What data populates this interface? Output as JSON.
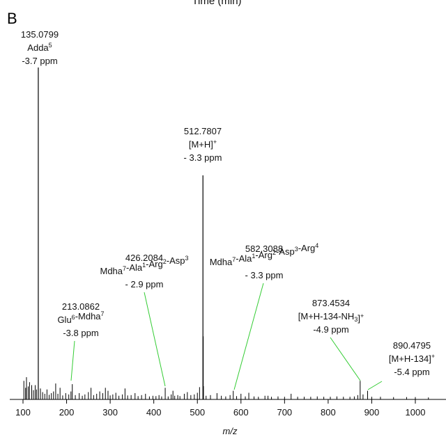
{
  "header_fragment": "Time (min)",
  "panel_label": "B",
  "chart_data": {
    "type": "bar",
    "subtype": "mass-spectrum-stick",
    "xlabel": "m/z",
    "xlim": [
      75,
      1075
    ],
    "xticks": [
      100,
      200,
      300,
      400,
      500,
      600,
      700,
      800,
      900,
      1000
    ],
    "colors": {
      "peaks": "#000000",
      "leader_lines": "#33cc33",
      "axis": "#000000"
    },
    "annotations": [
      {
        "mz": "135.0799",
        "line2": "Adda",
        "line2_sup": "5",
        "line3": "-3.7 ppm"
      },
      {
        "mz": "512.7807",
        "line2": "[M+H]",
        "line2_sup": "+",
        "line3": "- 3.3 ppm"
      },
      {
        "mz": "426.2084",
        "line2_parts": [
          [
            "Mdha",
            "7"
          ],
          [
            "-Ala",
            "1"
          ],
          [
            "-Arg",
            "2"
          ],
          [
            "-Asp",
            "3"
          ]
        ],
        "line3": "- 2.9 ppm"
      },
      {
        "mz": "582.3088",
        "line2_parts": [
          [
            "Mdha",
            "7"
          ],
          [
            "-Ala",
            "1"
          ],
          [
            "-Arg",
            "2"
          ],
          [
            "-Asp",
            "3"
          ],
          [
            "-Arg",
            "4"
          ]
        ],
        "line3": "- 3.3 ppm"
      },
      {
        "mz": "213.0862",
        "line2_parts": [
          [
            "Glu",
            "6"
          ],
          [
            "-Mdha",
            "7"
          ]
        ],
        "line3": "-3.8 ppm"
      },
      {
        "mz": "873.4534",
        "line2_parts": [
          [
            "[M+H-134-NH",
            ""
          ],
          [
            "",
            "3"
          ],
          [
            "]",
            "+"
          ]
        ],
        "line3": "-4.9 ppm"
      },
      {
        "mz": "890.4795",
        "line2": "[M+H-134]",
        "line2_sup": "+",
        "line3": "-5.4 ppm"
      }
    ],
    "peaks": [
      [
        135.08,
        100
      ],
      [
        512.78,
        67.5
      ],
      [
        513.3,
        19
      ],
      [
        514.0,
        4
      ],
      [
        873.45,
        5.6
      ],
      [
        890.48,
        2.6
      ],
      [
        426.21,
        3.5
      ],
      [
        213.09,
        4.6
      ],
      [
        582.31,
        2.6
      ],
      [
        102,
        5.6
      ],
      [
        106,
        3.5
      ],
      [
        108,
        6.7
      ],
      [
        112,
        3.9
      ],
      [
        115,
        5.2
      ],
      [
        120,
        4.3
      ],
      [
        124,
        2.8
      ],
      [
        128,
        4.3
      ],
      [
        131,
        3.0
      ],
      [
        140,
        3.3
      ],
      [
        145,
        2.2
      ],
      [
        150,
        1.7
      ],
      [
        155,
        3.0
      ],
      [
        160,
        1.4
      ],
      [
        165,
        1.9
      ],
      [
        170,
        2.4
      ],
      [
        175,
        4.8
      ],
      [
        180,
        1.7
      ],
      [
        185,
        3.5
      ],
      [
        191,
        1.2
      ],
      [
        198,
        1.9
      ],
      [
        205,
        1.5
      ],
      [
        210,
        2.4
      ],
      [
        220,
        1.3
      ],
      [
        229,
        1.9
      ],
      [
        236,
        1.1
      ],
      [
        242,
        1.5
      ],
      [
        250,
        2.2
      ],
      [
        256,
        3.5
      ],
      [
        262,
        1.3
      ],
      [
        269,
        1.7
      ],
      [
        276,
        2.4
      ],
      [
        283,
        1.9
      ],
      [
        289,
        3.5
      ],
      [
        295,
        2.6
      ],
      [
        300,
        1.2
      ],
      [
        306,
        1.5
      ],
      [
        313,
        2.0
      ],
      [
        320,
        1.1
      ],
      [
        328,
        1.5
      ],
      [
        334,
        3.3
      ],
      [
        340,
        1.2
      ],
      [
        348,
        1.3
      ],
      [
        357,
        1.9
      ],
      [
        364,
        1.0
      ],
      [
        372,
        1.3
      ],
      [
        381,
        1.7
      ],
      [
        390,
        0.9
      ],
      [
        398,
        1.1
      ],
      [
        405,
        1.0
      ],
      [
        412,
        1.3
      ],
      [
        418,
        0.9
      ],
      [
        433,
        0.9
      ],
      [
        440,
        1.5
      ],
      [
        444,
        2.6
      ],
      [
        448,
        1.1
      ],
      [
        455,
        1.3
      ],
      [
        460,
        1.0
      ],
      [
        470,
        1.7
      ],
      [
        477,
        2.2
      ],
      [
        485,
        1.3
      ],
      [
        493,
        1.5
      ],
      [
        500,
        2.0
      ],
      [
        505,
        3.7
      ],
      [
        520,
        1.1
      ],
      [
        530,
        1.3
      ],
      [
        545,
        1.9
      ],
      [
        555,
        1.1
      ],
      [
        565,
        0.9
      ],
      [
        575,
        1.3
      ],
      [
        590,
        1.0
      ],
      [
        600,
        1.7
      ],
      [
        610,
        0.9
      ],
      [
        618,
        2.0
      ],
      [
        630,
        0.9
      ],
      [
        640,
        0.8
      ],
      [
        655,
        1.1
      ],
      [
        662,
        1.1
      ],
      [
        670,
        0.8
      ],
      [
        685,
        0.9
      ],
      [
        700,
        0.8
      ],
      [
        715,
        1.7
      ],
      [
        730,
        0.8
      ],
      [
        745,
        0.8
      ],
      [
        760,
        0.8
      ],
      [
        775,
        0.9
      ],
      [
        790,
        0.8
      ],
      [
        805,
        0.8
      ],
      [
        820,
        0.9
      ],
      [
        835,
        0.8
      ],
      [
        850,
        0.8
      ],
      [
        860,
        0.9
      ],
      [
        868,
        1.3
      ],
      [
        880,
        1.5
      ],
      [
        900,
        0.8
      ],
      [
        920,
        0.8
      ],
      [
        950,
        0.7
      ],
      [
        980,
        0.7
      ],
      [
        1000,
        0.7
      ],
      [
        1030,
        0.6
      ]
    ]
  }
}
